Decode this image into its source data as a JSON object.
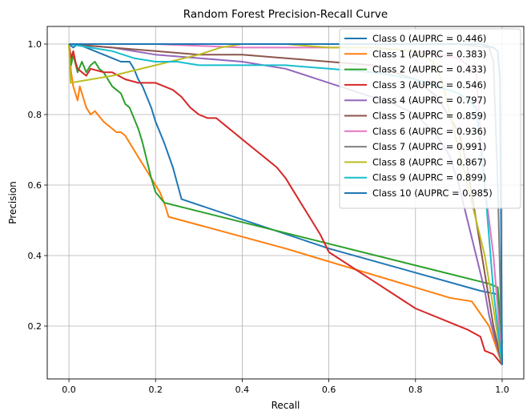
{
  "chart_data": {
    "type": "line",
    "title": "Random Forest Precision-Recall Curve",
    "xlabel": "Recall",
    "ylabel": "Precision",
    "xlim": [
      -0.05,
      1.05
    ],
    "ylim": [
      0.05,
      1.05
    ],
    "xticks": [
      "0.0",
      "0.2",
      "0.4",
      "0.6",
      "0.8",
      "1.0"
    ],
    "xtick_values": [
      0,
      0.2,
      0.4,
      0.6,
      0.8,
      1.0
    ],
    "yticks": [
      "0.2",
      "0.4",
      "0.6",
      "0.8",
      "1.0"
    ],
    "ytick_values": [
      0.2,
      0.4,
      0.6,
      0.8,
      1.0
    ],
    "grid": true,
    "legend_position": "upper-right",
    "series": [
      {
        "name": "Class 0 (AUPRC = 0.446)",
        "color": "#1f77b4",
        "x": [
          0,
          0.01,
          0.02,
          0.04,
          0.06,
          0.08,
          0.1,
          0.12,
          0.14,
          0.15,
          0.16,
          0.17,
          0.18,
          0.19,
          0.2,
          0.22,
          0.24,
          0.26,
          0.6,
          0.95,
          0.99,
          1.0
        ],
        "y": [
          1.0,
          0.99,
          1.0,
          0.99,
          0.98,
          0.97,
          0.96,
          0.95,
          0.95,
          0.93,
          0.9,
          0.88,
          0.85,
          0.82,
          0.78,
          0.72,
          0.65,
          0.56,
          0.42,
          0.3,
          0.29,
          0.09
        ]
      },
      {
        "name": "Class 1 (AUPRC = 0.383)",
        "color": "#ff7f0e",
        "x": [
          0,
          0.005,
          0.01,
          0.015,
          0.02,
          0.025,
          0.03,
          0.04,
          0.05,
          0.06,
          0.08,
          0.1,
          0.11,
          0.12,
          0.13,
          0.14,
          0.16,
          0.18,
          0.19,
          0.2,
          0.21,
          0.22,
          0.23,
          0.5,
          0.88,
          0.93,
          0.97,
          1.0
        ],
        "y": [
          1.0,
          0.92,
          0.88,
          0.86,
          0.84,
          0.88,
          0.86,
          0.82,
          0.8,
          0.81,
          0.78,
          0.76,
          0.75,
          0.75,
          0.74,
          0.72,
          0.68,
          0.64,
          0.62,
          0.6,
          0.58,
          0.55,
          0.51,
          0.42,
          0.28,
          0.27,
          0.2,
          0.09
        ]
      },
      {
        "name": "Class 2 (AUPRC = 0.433)",
        "color": "#2ca02c",
        "x": [
          0,
          0.005,
          0.01,
          0.02,
          0.03,
          0.04,
          0.05,
          0.06,
          0.07,
          0.08,
          0.09,
          0.1,
          0.11,
          0.12,
          0.13,
          0.14,
          0.15,
          0.16,
          0.17,
          0.18,
          0.19,
          0.2,
          0.22,
          0.97,
          0.99,
          1.0
        ],
        "y": [
          1.0,
          0.94,
          0.97,
          0.92,
          0.95,
          0.92,
          0.94,
          0.95,
          0.93,
          0.92,
          0.9,
          0.88,
          0.87,
          0.86,
          0.83,
          0.82,
          0.79,
          0.76,
          0.72,
          0.67,
          0.62,
          0.58,
          0.55,
          0.32,
          0.31,
          0.15
        ]
      },
      {
        "name": "Class 3 (AUPRC = 0.546)",
        "color": "#d62728",
        "x": [
          0,
          0.005,
          0.01,
          0.015,
          0.02,
          0.03,
          0.04,
          0.05,
          0.08,
          0.1,
          0.13,
          0.16,
          0.2,
          0.24,
          0.26,
          0.28,
          0.3,
          0.32,
          0.34,
          0.36,
          0.38,
          0.4,
          0.42,
          0.44,
          0.46,
          0.48,
          0.5,
          0.52,
          0.54,
          0.56,
          0.58,
          0.6,
          0.7,
          0.8,
          0.88,
          0.92,
          0.95,
          0.96,
          0.98,
          1.0
        ],
        "y": [
          1.0,
          0.96,
          0.98,
          0.95,
          0.93,
          0.92,
          0.91,
          0.93,
          0.92,
          0.92,
          0.9,
          0.89,
          0.89,
          0.87,
          0.85,
          0.82,
          0.8,
          0.79,
          0.79,
          0.77,
          0.75,
          0.73,
          0.71,
          0.69,
          0.67,
          0.65,
          0.62,
          0.58,
          0.54,
          0.5,
          0.46,
          0.41,
          0.33,
          0.25,
          0.21,
          0.19,
          0.17,
          0.13,
          0.12,
          0.09
        ]
      },
      {
        "name": "Class 4 (AUPRC = 0.797)",
        "color": "#9467bd",
        "x": [
          0,
          0.1,
          0.2,
          0.3,
          0.4,
          0.5,
          0.55,
          0.6,
          0.65,
          0.7,
          0.75,
          0.8,
          0.85,
          0.88,
          0.9,
          0.92,
          0.94,
          0.96,
          0.97,
          0.98,
          1.0
        ],
        "y": [
          1.0,
          0.99,
          0.97,
          0.96,
          0.95,
          0.93,
          0.91,
          0.89,
          0.87,
          0.85,
          0.83,
          0.8,
          0.74,
          0.68,
          0.6,
          0.5,
          0.4,
          0.3,
          0.23,
          0.18,
          0.09
        ]
      },
      {
        "name": "Class 5 (AUPRC = 0.859)",
        "color": "#8c564b",
        "x": [
          0,
          0.1,
          0.2,
          0.3,
          0.4,
          0.5,
          0.6,
          0.7,
          0.8,
          0.85,
          0.9,
          0.92,
          0.94,
          0.96,
          0.98,
          1.0
        ],
        "y": [
          1.0,
          0.99,
          0.98,
          0.97,
          0.97,
          0.96,
          0.95,
          0.94,
          0.9,
          0.85,
          0.75,
          0.65,
          0.5,
          0.35,
          0.2,
          0.09
        ]
      },
      {
        "name": "Class 6 (AUPRC = 0.936)",
        "color": "#e377c2",
        "x": [
          0,
          0.2,
          0.4,
          0.6,
          0.7,
          0.8,
          0.9,
          0.94,
          0.95,
          0.96,
          0.97,
          0.98,
          0.99,
          1.0
        ],
        "y": [
          1.0,
          1.0,
          0.99,
          0.99,
          0.99,
          0.98,
          0.96,
          0.92,
          0.75,
          0.6,
          0.5,
          0.4,
          0.25,
          0.09
        ]
      },
      {
        "name": "Class 7 (AUPRC = 0.991)",
        "color": "#7f7f7f",
        "x": [
          0,
          0.5,
          0.9,
          0.97,
          0.98,
          0.99,
          1.0
        ],
        "y": [
          1.0,
          1.0,
          1.0,
          0.99,
          0.95,
          0.6,
          0.09
        ]
      },
      {
        "name": "Class 8 (AUPRC = 0.867)",
        "color": "#bcbd22",
        "x": [
          0,
          0.002,
          0.004,
          0.1,
          0.2,
          0.3,
          0.35,
          0.4,
          0.5,
          0.6,
          0.7,
          0.8,
          0.84,
          0.86,
          0.88,
          0.9,
          0.92,
          0.94,
          0.96,
          0.98,
          1.0
        ],
        "y": [
          1.0,
          0.95,
          0.89,
          0.91,
          0.94,
          0.97,
          0.99,
          1.0,
          1.0,
          0.99,
          0.99,
          0.98,
          0.95,
          0.9,
          0.8,
          0.7,
          0.6,
          0.5,
          0.4,
          0.25,
          0.09
        ]
      },
      {
        "name": "Class 9 (AUPRC = 0.899)",
        "color": "#17becf",
        "x": [
          0,
          0.05,
          0.1,
          0.15,
          0.2,
          0.25,
          0.3,
          0.35,
          0.4,
          0.5,
          0.6,
          0.7,
          0.8,
          0.85,
          0.9,
          0.94,
          0.96,
          0.98,
          1.0
        ],
        "y": [
          1.0,
          0.99,
          0.98,
          0.96,
          0.95,
          0.95,
          0.94,
          0.94,
          0.94,
          0.94,
          0.93,
          0.92,
          0.9,
          0.88,
          0.86,
          0.82,
          0.6,
          0.3,
          0.09
        ]
      },
      {
        "name": "Class 10 (AUPRC = 0.985)",
        "color": "#1f77b4",
        "x": [
          0,
          0.3,
          0.6,
          0.8,
          0.9,
          0.95,
          0.98,
          0.99,
          0.995,
          1.0
        ],
        "y": [
          1.0,
          1.0,
          1.0,
          1.0,
          1.0,
          1.0,
          0.99,
          0.98,
          0.9,
          0.09
        ]
      }
    ]
  }
}
